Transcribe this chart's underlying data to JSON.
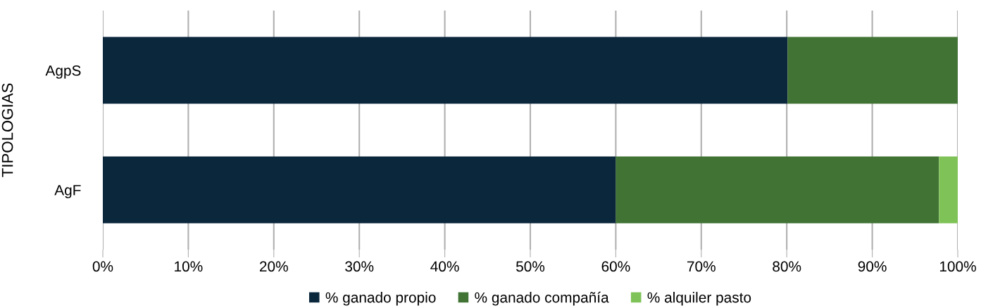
{
  "chart_data": {
    "type": "bar",
    "orientation": "horizontal",
    "stacked": true,
    "ylabel": "TIPOLOGIAS",
    "categories": [
      "AgpS",
      "AgF"
    ],
    "series": [
      {
        "name": "% ganado propio",
        "color": "#0b273b",
        "values": [
          80.1,
          60.0
        ]
      },
      {
        "name": "% ganado compañía",
        "color": "#417335",
        "values": [
          19.9,
          37.8
        ]
      },
      {
        "name": "% alquiler pasto",
        "color": "#7fc257",
        "values": [
          0,
          2.2
        ]
      }
    ],
    "xlim": [
      0,
      100
    ],
    "xticks": [
      {
        "value": 0,
        "label": "0%"
      },
      {
        "value": 10,
        "label": "10%"
      },
      {
        "value": 20,
        "label": "20%"
      },
      {
        "value": 30,
        "label": "30%"
      },
      {
        "value": 40,
        "label": "40%"
      },
      {
        "value": 50,
        "label": "50%"
      },
      {
        "value": 60,
        "label": "60%"
      },
      {
        "value": 70,
        "label": "70%"
      },
      {
        "value": 80,
        "label": "80%"
      },
      {
        "value": 90,
        "label": "90%"
      },
      {
        "value": 100,
        "label": "100%"
      }
    ],
    "grid": "x",
    "legend": "bottom"
  }
}
